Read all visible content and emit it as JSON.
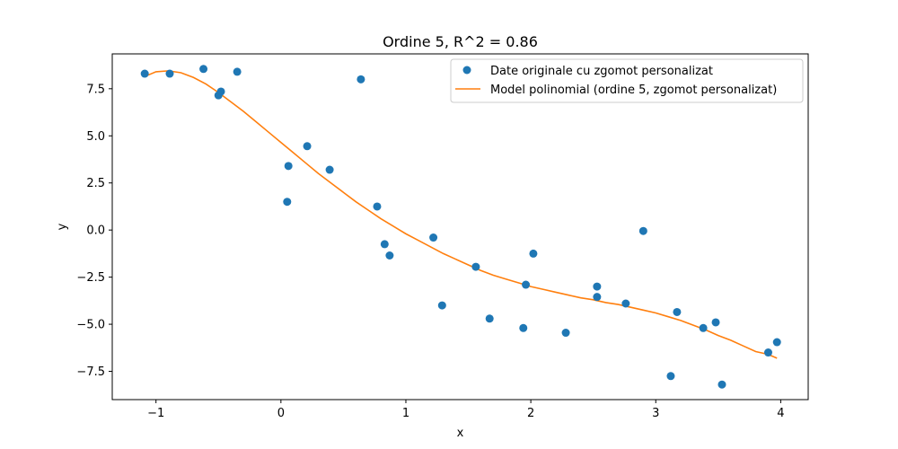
{
  "chart_data": {
    "type": "scatter",
    "title": "Ordine 5, R^2 = 0.86",
    "xlabel": "x",
    "ylabel": "y",
    "xlim": [
      -1.35,
      4.22
    ],
    "ylim": [
      -9.0,
      9.35
    ],
    "xticks": [
      -1,
      0,
      1,
      2,
      3,
      4
    ],
    "yticks": [
      -7.5,
      -5.0,
      -2.5,
      0.0,
      2.5,
      5.0,
      7.5
    ],
    "xtick_labels": [
      "−1",
      "0",
      "1",
      "2",
      "3",
      "4"
    ],
    "ytick_labels": [
      "−7.5",
      "−5.0",
      "−2.5",
      "0.0",
      "2.5",
      "5.0",
      "7.5"
    ],
    "grid": false,
    "legend_position": "top-right",
    "colors": {
      "points": "#1f77b4",
      "curve": "#ff7f0e"
    },
    "series": [
      {
        "name": "Date originale cu zgomot personalizat",
        "kind": "scatter",
        "points": [
          [
            -1.09,
            8.3
          ],
          [
            -0.89,
            8.3
          ],
          [
            -0.62,
            8.55
          ],
          [
            -0.5,
            7.15
          ],
          [
            -0.48,
            7.35
          ],
          [
            -0.35,
            8.4
          ],
          [
            0.05,
            1.5
          ],
          [
            0.06,
            3.4
          ],
          [
            0.21,
            4.45
          ],
          [
            0.39,
            3.2
          ],
          [
            0.64,
            8.0
          ],
          [
            0.77,
            1.25
          ],
          [
            0.83,
            -0.75
          ],
          [
            0.87,
            -1.35
          ],
          [
            1.22,
            -0.4
          ],
          [
            1.29,
            -4.0
          ],
          [
            1.56,
            -1.95
          ],
          [
            1.67,
            -4.7
          ],
          [
            1.94,
            -5.2
          ],
          [
            1.96,
            -2.9
          ],
          [
            2.02,
            -1.25
          ],
          [
            2.28,
            -5.45
          ],
          [
            2.53,
            -3.0
          ],
          [
            2.53,
            -3.55
          ],
          [
            2.76,
            -3.9
          ],
          [
            2.9,
            -0.05
          ],
          [
            3.12,
            -7.75
          ],
          [
            3.17,
            -4.35
          ],
          [
            3.38,
            -5.2
          ],
          [
            3.48,
            -4.9
          ],
          [
            3.53,
            -8.2
          ],
          [
            3.9,
            -6.5
          ],
          [
            3.97,
            -5.95
          ]
        ]
      },
      {
        "name": "Model polinomial (ordine 5, zgomot personalizat)",
        "kind": "line",
        "points": [
          [
            -1.09,
            8.15
          ],
          [
            -1.0,
            8.4
          ],
          [
            -0.9,
            8.45
          ],
          [
            -0.8,
            8.35
          ],
          [
            -0.7,
            8.1
          ],
          [
            -0.6,
            7.75
          ],
          [
            -0.5,
            7.3
          ],
          [
            -0.4,
            6.8
          ],
          [
            -0.3,
            6.3
          ],
          [
            -0.2,
            5.75
          ],
          [
            -0.1,
            5.2
          ],
          [
            0.0,
            4.65
          ],
          [
            0.1,
            4.1
          ],
          [
            0.2,
            3.55
          ],
          [
            0.3,
            3.0
          ],
          [
            0.4,
            2.5
          ],
          [
            0.5,
            2.0
          ],
          [
            0.6,
            1.5
          ],
          [
            0.7,
            1.05
          ],
          [
            0.8,
            0.6
          ],
          [
            0.9,
            0.2
          ],
          [
            1.0,
            -0.2
          ],
          [
            1.1,
            -0.55
          ],
          [
            1.2,
            -0.9
          ],
          [
            1.3,
            -1.25
          ],
          [
            1.4,
            -1.55
          ],
          [
            1.5,
            -1.85
          ],
          [
            1.6,
            -2.15
          ],
          [
            1.7,
            -2.4
          ],
          [
            1.8,
            -2.6
          ],
          [
            1.9,
            -2.8
          ],
          [
            2.0,
            -3.0
          ],
          [
            2.1,
            -3.15
          ],
          [
            2.2,
            -3.3
          ],
          [
            2.3,
            -3.45
          ],
          [
            2.4,
            -3.6
          ],
          [
            2.5,
            -3.7
          ],
          [
            2.6,
            -3.85
          ],
          [
            2.7,
            -3.95
          ],
          [
            2.8,
            -4.1
          ],
          [
            2.9,
            -4.25
          ],
          [
            3.0,
            -4.4
          ],
          [
            3.1,
            -4.6
          ],
          [
            3.2,
            -4.8
          ],
          [
            3.3,
            -5.05
          ],
          [
            3.4,
            -5.3
          ],
          [
            3.5,
            -5.6
          ],
          [
            3.6,
            -5.85
          ],
          [
            3.7,
            -6.15
          ],
          [
            3.8,
            -6.45
          ],
          [
            3.9,
            -6.6
          ],
          [
            3.97,
            -6.8
          ]
        ]
      }
    ]
  }
}
